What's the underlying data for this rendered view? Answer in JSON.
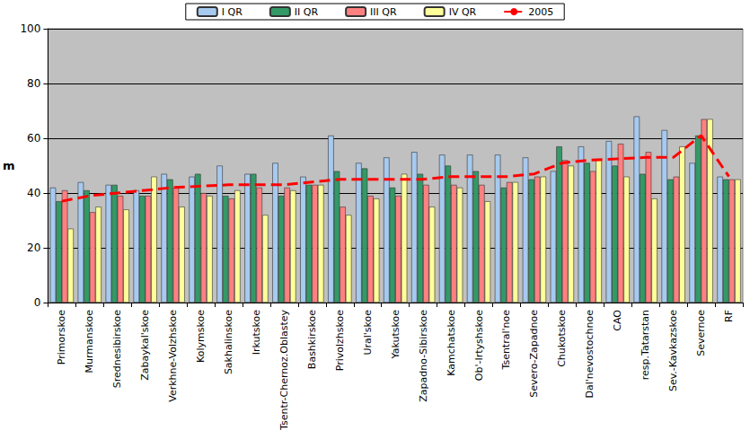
{
  "chart_data": {
    "type": "bar",
    "y_label": "m",
    "categories": [
      "Primorskoe",
      "Murmanskoe",
      "Srednesibirskoe",
      "Zabaykal'skoe",
      "Verkhne-Volzhskoe",
      "Kolymskoe",
      "Sakhalinskoe",
      "Irkutskoe",
      "Tsentr-Chernoz.Oblastey",
      "Bashkirskoe",
      "Privolzhskoe",
      "Ural'skoe",
      "Yakutskoe",
      "Zapadno-Sibirskoe",
      "Kamchatskoe",
      "Ob'-Irtyshskoe",
      "Tsentral'noe",
      "Severo-Zapadnoe",
      "Chukotskoe",
      "Dal'nevostochnoe",
      "CAO",
      "resp.Tatarstan",
      "Sev.-Kavkazskoe",
      "Severnoe",
      "RF"
    ],
    "series": [
      {
        "name": "I QR",
        "type": "bar",
        "color": "#a6caf0",
        "values": [
          42,
          44,
          43,
          41,
          47,
          46,
          50,
          47,
          51,
          46,
          61,
          51,
          53,
          55,
          54,
          54,
          54,
          53,
          48,
          57,
          59,
          68,
          63,
          51,
          46
        ]
      },
      {
        "name": "II QR",
        "type": "bar",
        "color": "#339966",
        "values": [
          37,
          41,
          43,
          39,
          45,
          47,
          39,
          47,
          39,
          43,
          48,
          49,
          42,
          47,
          50,
          48,
          42,
          45,
          57,
          51,
          50,
          47,
          45,
          61,
          45
        ]
      },
      {
        "name": "III QR",
        "type": "bar",
        "color": "#ff8080",
        "values": [
          41,
          33,
          39,
          39,
          42,
          40,
          38,
          42,
          42,
          43,
          35,
          39,
          39,
          43,
          43,
          43,
          44,
          46,
          52,
          48,
          58,
          55,
          46,
          67,
          45
        ]
      },
      {
        "name": "IV QR",
        "type": "bar",
        "color": "#ffff99",
        "values": [
          27,
          35,
          34,
          46,
          35,
          39,
          41,
          32,
          41,
          43,
          32,
          38,
          47,
          35,
          42,
          37,
          44,
          46,
          50,
          52,
          46,
          38,
          57,
          67,
          45
        ]
      },
      {
        "name": "2005",
        "type": "line",
        "color": "#ff0000",
        "line_style": "dashed",
        "values": [
          37,
          39,
          40,
          41,
          42,
          42.5,
          43,
          43,
          43,
          44,
          45,
          45,
          45,
          45,
          46,
          46,
          46,
          47,
          51,
          52,
          52.5,
          53,
          53,
          61,
          46
        ]
      }
    ],
    "ylim": [
      0,
      100
    ],
    "yticks": [
      0,
      20,
      40,
      60,
      80,
      100
    ],
    "grid": true,
    "legend": "top"
  }
}
